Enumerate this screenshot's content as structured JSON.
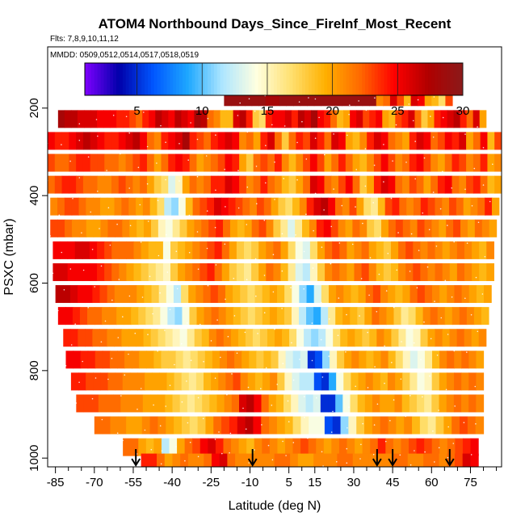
{
  "chart_data": {
    "type": "heatmap",
    "title": "ATOM4 Northbound Days_Since_FireInf_Most_Recent",
    "subtitle_flights": "Flts: 7,8,9,10,11,12",
    "subtitle_dates": "MMDD: 0509,0512,0514,0517,0518,0519",
    "xlabel": "Latitude (deg N)",
    "ylabel": "PSXC (mbar)",
    "xlim": [
      -88,
      87
    ],
    "ylim": [
      1020,
      60
    ],
    "y_reversed": true,
    "x_ticks": [
      -85,
      -70,
      -55,
      -40,
      -25,
      -10,
      5,
      15,
      30,
      45,
      60,
      75
    ],
    "x_tick_labels": [
      "-85",
      "-70",
      "-55",
      "-40",
      "-25",
      "-10",
      "5",
      "15",
      "30",
      "45",
      "60",
      "75"
    ],
    "x_minor_ticks": [
      -80,
      -75,
      -65,
      -60,
      -50,
      -45,
      -35,
      -30,
      -20,
      -15,
      -5,
      0,
      10,
      20,
      25,
      35,
      40,
      50,
      55,
      65,
      70,
      80,
      85
    ],
    "y_ticks": [
      200,
      400,
      600,
      800,
      1000
    ],
    "y_tick_labels": [
      "200",
      "400",
      "600",
      "800",
      "1000"
    ],
    "colorbar": {
      "min": 1,
      "max": 30,
      "ticks": [
        5,
        10,
        15,
        20,
        25,
        30
      ],
      "tick_labels": [
        "5",
        "10",
        "15",
        "20",
        "25",
        "30"
      ],
      "colors": [
        "#7f00ff",
        "#0000aa",
        "#0057ff",
        "#1ea8ff",
        "#aee6ff",
        "#ffffe0",
        "#ffe070",
        "#ffb000",
        "#ff6a00",
        "#ff0000",
        "#b00000",
        "#8b1a1a"
      ]
    },
    "arrow_latitudes": [
      -54,
      -9,
      39,
      45,
      67
    ],
    "rows": [
      {
        "p": 175,
        "lat0": -20,
        "lat1": 68,
        "v": [
          29,
          29,
          29,
          29,
          29,
          29,
          28,
          28,
          29,
          29,
          29,
          29,
          29,
          29,
          29,
          29,
          29,
          29,
          29,
          29,
          29,
          29,
          21,
          22,
          26,
          23,
          19,
          26,
          25,
          20,
          19,
          17,
          23
        ]
      },
      {
        "p": 225,
        "lat0": -84,
        "lat1": 81,
        "v": [
          28,
          27,
          27,
          26,
          26,
          26,
          25,
          25,
          25,
          24,
          24,
          23,
          22,
          24,
          25,
          27,
          26,
          25,
          27,
          26,
          25,
          28,
          27,
          22,
          21,
          19,
          19,
          26,
          27,
          24,
          18,
          17,
          24,
          25,
          25,
          26,
          24,
          27,
          26,
          28,
          25,
          24,
          22,
          19,
          20,
          25,
          26,
          23,
          24,
          25,
          20,
          19,
          23,
          24,
          26,
          22,
          18,
          20,
          24,
          25,
          26,
          27,
          24,
          22,
          26,
          20
        ]
      },
      {
        "p": 275,
        "lat0": -88,
        "lat1": 87,
        "v": [
          25,
          24,
          24,
          25,
          26,
          27,
          26,
          25,
          24,
          24,
          25,
          26,
          27,
          25,
          22,
          21,
          24,
          25,
          26,
          28,
          24,
          23,
          22,
          24,
          25,
          26,
          25,
          21,
          22,
          20,
          24,
          26,
          22,
          18,
          22,
          24,
          23,
          26,
          24,
          22,
          26,
          25,
          20,
          19,
          21,
          24,
          26,
          25,
          22,
          21,
          20,
          24,
          26,
          25,
          22,
          23,
          25,
          24,
          26,
          20,
          22,
          25,
          19,
          23
        ]
      },
      {
        "p": 325,
        "lat0": -88,
        "lat1": 87,
        "v": [
          23,
          22,
          22,
          23,
          24,
          24,
          23,
          23,
          22,
          22,
          21,
          22,
          23,
          24,
          22,
          20,
          22,
          24,
          25,
          24,
          22,
          20,
          21,
          22,
          23,
          25,
          24,
          20,
          18,
          22,
          23,
          22,
          24,
          21,
          19,
          21,
          23,
          25,
          23,
          20,
          22,
          24,
          22,
          20,
          19,
          21,
          23,
          25,
          23,
          21,
          22,
          24,
          25,
          23,
          21,
          20,
          22,
          24,
          23,
          21,
          22,
          24,
          20,
          21
        ]
      },
      {
        "p": 375,
        "lat0": -88,
        "lat1": 87,
        "v": [
          22,
          23,
          24,
          24,
          23,
          22,
          22,
          21,
          21,
          22,
          23,
          22,
          21,
          22,
          20,
          18,
          17,
          13,
          15,
          20,
          22,
          21,
          22,
          24,
          24,
          26,
          25,
          23,
          21,
          22,
          24,
          22,
          21,
          19,
          18,
          20,
          22,
          26,
          25,
          22,
          21,
          23,
          25,
          22,
          18,
          20,
          24,
          26,
          25,
          22,
          21,
          23,
          22,
          20,
          22,
          24,
          25,
          22,
          21,
          23,
          24,
          22,
          19,
          20
        ]
      },
      {
        "p": 425,
        "lat0": -87,
        "lat1": 86,
        "v": [
          21,
          22,
          23,
          23,
          22,
          21,
          21,
          20,
          20,
          21,
          22,
          21,
          20,
          21,
          19,
          17,
          12,
          11,
          14,
          19,
          22,
          23,
          24,
          26,
          25,
          24,
          23,
          22,
          21,
          23,
          22,
          20,
          18,
          17,
          19,
          21,
          24,
          26,
          27,
          25,
          22,
          21,
          23,
          20,
          17,
          16,
          19,
          23,
          24,
          22,
          21,
          22,
          24,
          23,
          22,
          21,
          23,
          22,
          20,
          21,
          22,
          24,
          20
        ]
      },
      {
        "p": 475,
        "lat0": -87,
        "lat1": 85,
        "v": [
          23,
          23,
          22,
          21,
          21,
          20,
          20,
          21,
          22,
          22,
          21,
          20,
          19,
          20,
          18,
          15,
          14,
          16,
          18,
          20,
          21,
          22,
          23,
          24,
          22,
          20,
          19,
          20,
          22,
          23,
          21,
          18,
          16,
          13,
          16,
          19,
          21,
          24,
          25,
          23,
          21,
          20,
          22,
          21,
          18,
          17,
          20,
          22,
          23,
          22,
          21,
          23,
          22,
          21,
          20,
          22,
          23,
          21,
          20,
          22,
          21,
          20
        ]
      },
      {
        "p": 525,
        "lat0": -86,
        "lat1": 84,
        "v": [
          25,
          25,
          25,
          26,
          26,
          25,
          24,
          23,
          22,
          22,
          22,
          21,
          20,
          19,
          19,
          14,
          18,
          19,
          20,
          21,
          22,
          23,
          24,
          22,
          20,
          18,
          17,
          18,
          20,
          21,
          22,
          20,
          17,
          14,
          13,
          17,
          20,
          22,
          23,
          22,
          20,
          21,
          22,
          20,
          19,
          18,
          20,
          22,
          23,
          22,
          21,
          22,
          21,
          20,
          21,
          22,
          21,
          20,
          19,
          21
        ]
      },
      {
        "p": 575,
        "lat0": -86,
        "lat1": 84,
        "v": [
          26,
          26,
          25,
          25,
          25,
          25,
          24,
          23,
          22,
          21,
          20,
          19,
          18,
          17,
          16,
          15,
          18,
          20,
          21,
          22,
          23,
          24,
          22,
          20,
          18,
          17,
          16,
          18,
          20,
          22,
          21,
          19,
          16,
          13,
          12,
          15,
          18,
          21,
          22,
          21,
          20,
          22,
          23,
          21,
          19,
          18,
          19,
          21,
          22,
          23,
          22,
          21,
          22,
          21,
          20,
          22,
          21,
          20,
          19,
          20
        ]
      },
      {
        "p": 625,
        "lat0": -85,
        "lat1": 83,
        "v": [
          27,
          27,
          26,
          25,
          25,
          24,
          23,
          22,
          21,
          21,
          21,
          20,
          19,
          18,
          16,
          14,
          12,
          17,
          20,
          21,
          22,
          23,
          22,
          20,
          19,
          18,
          17,
          18,
          19,
          20,
          19,
          17,
          14,
          11,
          9,
          13,
          17,
          20,
          21,
          20,
          19,
          20,
          22,
          23,
          21,
          20,
          19,
          20,
          22,
          23,
          22,
          21,
          20,
          21,
          22,
          21,
          20,
          19,
          20
        ]
      },
      {
        "p": 675,
        "lat0": -84,
        "lat1": 82,
        "v": [
          25,
          25,
          24,
          23,
          22,
          22,
          21,
          21,
          20,
          20,
          19,
          18,
          17,
          16,
          14,
          12,
          11,
          14,
          18,
          20,
          21,
          22,
          21,
          20,
          19,
          18,
          17,
          18,
          19,
          20,
          19,
          18,
          15,
          12,
          10,
          9,
          12,
          16,
          19,
          20,
          19,
          18,
          20,
          22,
          21,
          20,
          18,
          16,
          17,
          19,
          21,
          22,
          21,
          20,
          21,
          22,
          21,
          20,
          19
        ]
      },
      {
        "p": 725,
        "lat0": -82,
        "lat1": 81,
        "v": [
          24,
          24,
          23,
          23,
          22,
          22,
          21,
          21,
          20,
          20,
          20,
          19,
          18,
          17,
          16,
          15,
          14,
          16,
          18,
          19,
          21,
          22,
          21,
          20,
          19,
          18,
          17,
          18,
          19,
          20,
          19,
          17,
          14,
          12,
          11,
          12,
          14,
          17,
          19,
          20,
          19,
          18,
          19,
          21,
          20,
          18,
          16,
          14,
          15,
          18,
          20,
          21,
          20,
          21,
          22,
          21,
          20,
          21
        ]
      },
      {
        "p": 775,
        "lat0": -81,
        "lat1": 80,
        "v": [
          25,
          25,
          24,
          24,
          23,
          23,
          22,
          22,
          21,
          21,
          20,
          20,
          19,
          18,
          18,
          17,
          16,
          17,
          18,
          19,
          20,
          21,
          22,
          21,
          20,
          19,
          18,
          19,
          18,
          15,
          13,
          12,
          13,
          5,
          6,
          11,
          15,
          18,
          20,
          21,
          20,
          19,
          20,
          21,
          19,
          17,
          15,
          13,
          14,
          16,
          19,
          21,
          22,
          21,
          22,
          21,
          20
        ]
      },
      {
        "p": 825,
        "lat0": -79,
        "lat1": 80,
        "v": [
          24,
          24,
          23,
          23,
          23,
          22,
          22,
          21,
          21,
          21,
          20,
          20,
          20,
          19,
          18,
          17,
          16,
          17,
          19,
          20,
          21,
          22,
          23,
          21,
          20,
          19,
          20,
          21,
          18,
          15,
          13,
          12,
          12,
          6,
          5,
          9,
          14,
          17,
          19,
          20,
          21,
          20,
          19,
          21,
          20,
          18,
          16,
          14,
          15,
          18,
          20,
          21,
          22,
          21,
          22,
          21
        ]
      },
      {
        "p": 875,
        "lat0": -77,
        "lat1": 80,
        "v": [
          23,
          23,
          23,
          22,
          22,
          22,
          21,
          21,
          21,
          20,
          20,
          20,
          19,
          18,
          17,
          16,
          17,
          18,
          19,
          20,
          21,
          22,
          26,
          27,
          25,
          22,
          20,
          19,
          17,
          15,
          13,
          12,
          13,
          5,
          5,
          10,
          14,
          17,
          19,
          20,
          21,
          20,
          20,
          21,
          19,
          18,
          17,
          16,
          18,
          20,
          21,
          22,
          21,
          22,
          21
        ]
      },
      {
        "p": 925,
        "lat0": -70,
        "lat1": 80,
        "v": [
          22,
          22,
          21,
          21,
          20,
          20,
          21,
          22,
          21,
          20,
          19,
          18,
          17,
          18,
          20,
          22,
          23,
          24,
          26,
          27,
          25,
          22,
          21,
          20,
          19,
          17,
          15,
          14,
          14,
          6,
          5,
          11,
          15,
          18,
          20,
          21,
          22,
          21,
          20,
          21,
          19,
          17,
          16,
          18,
          20,
          22,
          23,
          22,
          21
        ]
      },
      {
        "p": 975,
        "lat0": -59,
        "lat1": 78,
        "v": [
          22,
          22,
          20,
          19,
          20,
          12,
          14,
          20,
          22,
          23,
          25,
          26,
          24,
          22,
          21,
          20,
          19,
          21,
          22,
          21,
          20,
          21,
          22,
          23,
          22,
          21,
          20,
          21,
          22,
          21,
          20,
          21,
          22,
          24,
          22,
          21,
          22,
          23,
          24,
          23,
          22,
          21,
          22,
          23,
          24,
          25
        ]
      },
      {
        "p": 1010,
        "lat0": -52,
        "lat1": 78,
        "v": [
          24,
          24,
          22,
          20,
          21,
          22,
          21,
          21,
          22,
          25,
          26,
          22,
          21,
          21,
          21,
          21,
          21,
          22,
          22,
          21,
          20,
          20,
          21,
          21,
          21,
          22,
          22,
          21,
          21,
          21,
          21,
          21,
          22,
          22,
          21,
          21,
          22,
          22,
          21,
          22,
          23,
          26,
          25
        ]
      }
    ]
  }
}
